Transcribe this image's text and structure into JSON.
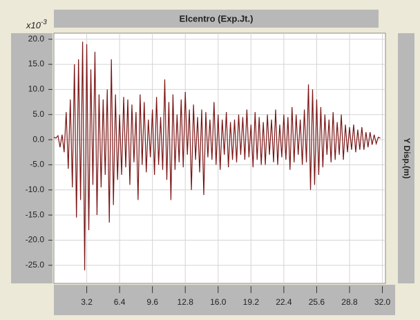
{
  "chart_data": {
    "type": "line",
    "title": "Elcentro (Exp.Jt.)",
    "y_label": "Y Disp.(m)",
    "y_scale_base": "x10",
    "y_scale_exponent": "-3",
    "xlim": [
      0,
      32.3
    ],
    "ylim": [
      -28.6,
      21.2
    ],
    "xticks": [
      3.2,
      6.4,
      9.6,
      12.8,
      {
        "value": 16,
        "label": "16.0"
      },
      19.2,
      22.4,
      25.6,
      28.8,
      {
        "value": 32,
        "label": "32.0"
      }
    ],
    "yticks": [
      {
        "value": 20,
        "label": "20.0"
      },
      {
        "value": 15,
        "label": "15.0"
      },
      {
        "value": 10,
        "label": "10.0"
      },
      {
        "value": 5,
        "label": "5.0"
      },
      {
        "value": 0,
        "label": "0.0"
      },
      {
        "value": -5,
        "label": "-5.0"
      },
      {
        "value": -10,
        "label": "-10.0"
      },
      {
        "value": -15,
        "label": "-15.0"
      },
      {
        "value": -20,
        "label": "-20.0"
      },
      {
        "value": -25,
        "label": "-25.0"
      }
    ],
    "grid": true,
    "x": [
      0,
      0.2,
      0.4,
      0.6,
      0.8,
      1,
      1.2,
      1.4,
      1.6,
      1.8,
      2,
      2.2,
      2.4,
      2.6,
      2.8,
      3,
      3.2,
      3.4,
      3.6,
      3.8,
      4,
      4.2,
      4.4,
      4.6,
      4.8,
      5,
      5.2,
      5.4,
      5.6,
      5.8,
      6,
      6.2,
      6.4,
      6.6,
      6.8,
      7,
      7.2,
      7.4,
      7.6,
      7.8,
      8,
      8.2,
      8.4,
      8.6,
      8.8,
      9,
      9.2,
      9.4,
      9.6,
      9.8,
      10,
      10.2,
      10.4,
      10.6,
      10.8,
      11,
      11.2,
      11.4,
      11.6,
      11.8,
      12,
      12.2,
      12.4,
      12.6,
      12.8,
      13,
      13.2,
      13.4,
      13.6,
      13.8,
      14,
      14.2,
      14.4,
      14.6,
      14.8,
      15,
      15.2,
      15.4,
      15.6,
      15.8,
      16,
      16.2,
      16.4,
      16.6,
      16.8,
      17,
      17.2,
      17.4,
      17.6,
      17.8,
      18,
      18.2,
      18.4,
      18.6,
      18.8,
      19,
      19.2,
      19.4,
      19.6,
      19.8,
      20,
      20.2,
      20.4,
      20.6,
      20.8,
      21,
      21.2,
      21.4,
      21.6,
      21.8,
      22,
      22.2,
      22.4,
      22.6,
      22.8,
      23,
      23.2,
      23.4,
      23.6,
      23.8,
      24,
      24.2,
      24.4,
      24.6,
      24.8,
      25,
      25.2,
      25.4,
      25.6,
      25.8,
      26,
      26.2,
      26.4,
      26.6,
      26.8,
      27,
      27.2,
      27.4,
      27.6,
      27.8,
      28,
      28.2,
      28.4,
      28.6,
      28.8,
      29,
      29.2,
      29.4,
      29.6,
      29.8,
      30,
      30.2,
      30.4,
      30.6,
      30.8,
      31,
      31.2,
      31.4,
      31.6,
      31.8
    ],
    "series": [
      {
        "color": "#7a1414",
        "values": [
          0.5,
          0.3,
          0.8,
          -1.5,
          1.0,
          -2.5,
          5.5,
          -5.8,
          8.0,
          -9.5,
          15.0,
          -15.5,
          16.0,
          -12.0,
          19.5,
          -26.0,
          19.0,
          -18.0,
          14.0,
          -9.0,
          17.5,
          -15.0,
          9.0,
          -9.5,
          8.0,
          -7.0,
          10.0,
          -16.5,
          16.0,
          -13.0,
          9.0,
          -8.0,
          5.0,
          -7.0,
          8.5,
          -5.5,
          8.0,
          -9.0,
          7.0,
          -4.5,
          5.5,
          -12.0,
          9.0,
          -5.0,
          7.5,
          -6.5,
          4.0,
          -3.5,
          6.0,
          -7.0,
          8.5,
          -5.0,
          4.5,
          -6.0,
          12.0,
          -8.0,
          7.5,
          -12.0,
          9.0,
          -6.0,
          5.0,
          -4.5,
          8.0,
          -5.5,
          9.5,
          -3.0,
          6.0,
          -10.0,
          7.0,
          -4.0,
          4.5,
          -6.5,
          6.0,
          -11.0,
          5.5,
          -3.5,
          4.0,
          -4.0,
          7.5,
          -5.0,
          5.0,
          -6.0,
          4.0,
          -3.0,
          5.5,
          -5.5,
          3.5,
          -4.0,
          4.0,
          -4.5,
          5.0,
          -3.0,
          4.5,
          -4.0,
          6.0,
          -3.5,
          3.0,
          -5.5,
          5.5,
          -4.0,
          4.5,
          -5.0,
          3.5,
          -5.0,
          5.0,
          -3.0,
          4.0,
          -4.5,
          6.0,
          -5.0,
          3.0,
          -3.5,
          5.0,
          -4.0,
          4.5,
          -6.0,
          6.5,
          -4.5,
          5.0,
          -3.0,
          4.0,
          -5.0,
          6.0,
          -4.5,
          11.0,
          -10.0,
          10.0,
          -9.0,
          8.0,
          -7.0,
          6.5,
          -5.5,
          5.0,
          -3.0,
          4.0,
          -4.5,
          5.5,
          -4.0,
          3.5,
          -3.0,
          5.0,
          -4.0,
          3.0,
          -2.5,
          2.5,
          -2.0,
          3.0,
          -2.5,
          2.0,
          -2.0,
          2.5,
          -2.0,
          1.5,
          -1.5,
          1.5,
          -1.0,
          1.0,
          -0.8,
          0.5,
          0.3
        ]
      }
    ]
  }
}
